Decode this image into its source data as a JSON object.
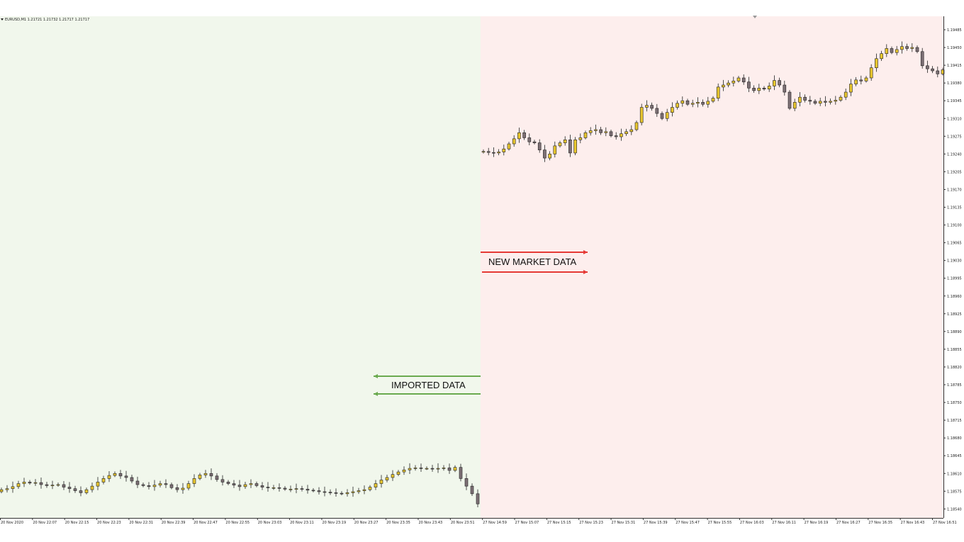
{
  "chart_data": {
    "type": "candlestick",
    "symbol_header": "EURUSD,M1  1.21721 1.21732 1.21717 1.21717",
    "y_ticks": [
      "1.19485",
      "1.19450",
      "1.19415",
      "1.19380",
      "1.19345",
      "1.19310",
      "1.19275",
      "1.19240",
      "1.19205",
      "1.19170",
      "1.19135",
      "1.19100",
      "1.19065",
      "1.19030",
      "1.18995",
      "1.18960",
      "1.18925",
      "1.18890",
      "1.18855",
      "1.18820",
      "1.18785",
      "1.18750",
      "1.18715",
      "1.18680",
      "1.18645",
      "1.18610",
      "1.18575",
      "1.18540"
    ],
    "ylim": [
      1.1853,
      1.195
    ],
    "x_ticks": [
      "20 Nov 2020",
      "20 Nov 22:07",
      "20 Nov 22:15",
      "20 Nov 22:23",
      "20 Nov 22:31",
      "20 Nov 22:39",
      "20 Nov 22:47",
      "20 Nov 22:55",
      "20 Nov 23:03",
      "20 Nov 23:11",
      "20 Nov 23:19",
      "20 Nov 23:27",
      "20 Nov 23:35",
      "20 Nov 23:43",
      "20 Nov 23:51",
      "27 Nov 14:59",
      "27 Nov 15:07",
      "27 Nov 15:15",
      "27 Nov 15:23",
      "27 Nov 15:31",
      "27 Nov 15:39",
      "27 Nov 15:47",
      "27 Nov 15:55",
      "27 Nov 16:03",
      "27 Nov 16:11",
      "27 Nov 16:19",
      "27 Nov 16:27",
      "27 Nov 16:35",
      "27 Nov 16:43",
      "27 Nov 16:51"
    ],
    "series": [
      {
        "segment": "imported",
        "closes": [
          1.18578,
          1.1858,
          1.18584,
          1.1859,
          1.18593,
          1.18591,
          1.18592,
          1.18588,
          1.18586,
          1.18587,
          1.18588,
          1.18583,
          1.1858,
          1.18576,
          1.18572,
          1.18578,
          1.18585,
          1.18593,
          1.186,
          1.18606,
          1.1861,
          1.18605,
          1.18602,
          1.18595,
          1.18588,
          1.18586,
          1.18584,
          1.18587,
          1.1859,
          1.18588,
          1.18582,
          1.18578,
          1.18581,
          1.1859,
          1.186,
          1.18607,
          1.1861,
          1.18605,
          1.18598,
          1.18593,
          1.1859,
          1.18587,
          1.18584,
          1.18588,
          1.1859,
          1.18586,
          1.18583,
          1.18582,
          1.18582,
          1.18581,
          1.18579,
          1.18579,
          1.1858,
          1.18579,
          1.18577,
          1.18576,
          1.18574,
          1.18573,
          1.18572,
          1.18571,
          1.1857,
          1.18572,
          1.18574,
          1.18576,
          1.18578,
          1.18583,
          1.1859,
          1.18597,
          1.18602,
          1.18608,
          1.18613,
          1.18617,
          1.1862,
          1.18621,
          1.1862,
          1.1862,
          1.18619,
          1.1862,
          1.18621,
          1.18616,
          1.18622,
          1.186,
          1.18585,
          1.1857,
          1.1855
        ]
      },
      {
        "segment": "new_market",
        "closes": [
          1.19245,
          1.19243,
          1.19242,
          1.19244,
          1.1925,
          1.1926,
          1.1927,
          1.19282,
          1.19272,
          1.19264,
          1.19262,
          1.19248,
          1.19232,
          1.1924,
          1.19256,
          1.19262,
          1.19268,
          1.19242,
          1.19268,
          1.19272,
          1.19282,
          1.19286,
          1.19288,
          1.19282,
          1.19284,
          1.19276,
          1.19274,
          1.1928,
          1.19284,
          1.19288,
          1.19302,
          1.19332,
          1.19336,
          1.1933,
          1.1932,
          1.1931,
          1.19322,
          1.19332,
          1.1934,
          1.19345,
          1.19338,
          1.1934,
          1.19342,
          1.19338,
          1.19344,
          1.1935,
          1.19372,
          1.19376,
          1.1938,
          1.19384,
          1.1939,
          1.19382,
          1.1937,
          1.19365,
          1.1937,
          1.19368,
          1.19374,
          1.19385,
          1.19376,
          1.19362,
          1.1933,
          1.19342,
          1.19352,
          1.19346,
          1.19344,
          1.1934,
          1.19344,
          1.19342,
          1.19344,
          1.19346,
          1.19352,
          1.19362,
          1.19378,
          1.19386,
          1.19384,
          1.1939,
          1.1941,
          1.19428,
          1.19438,
          1.19448,
          1.1944,
          1.19446,
          1.19452,
          1.19448,
          1.1945,
          1.19442,
          1.19414,
          1.19408,
          1.19404,
          1.19398,
          1.19406
        ]
      }
    ],
    "annotations": [
      {
        "text": "NEW MARKET DATA",
        "direction": "right",
        "color": "#e53935"
      },
      {
        "text": "IMPORTED DATA",
        "direction": "left",
        "color": "#6aaa4f"
      }
    ],
    "colors": {
      "bull_body": "#e8c62e",
      "bear_body": "#7d7075",
      "outline": "#222222",
      "imported_bg": "#f1f7ec",
      "new_bg": "#fdeeed"
    }
  }
}
